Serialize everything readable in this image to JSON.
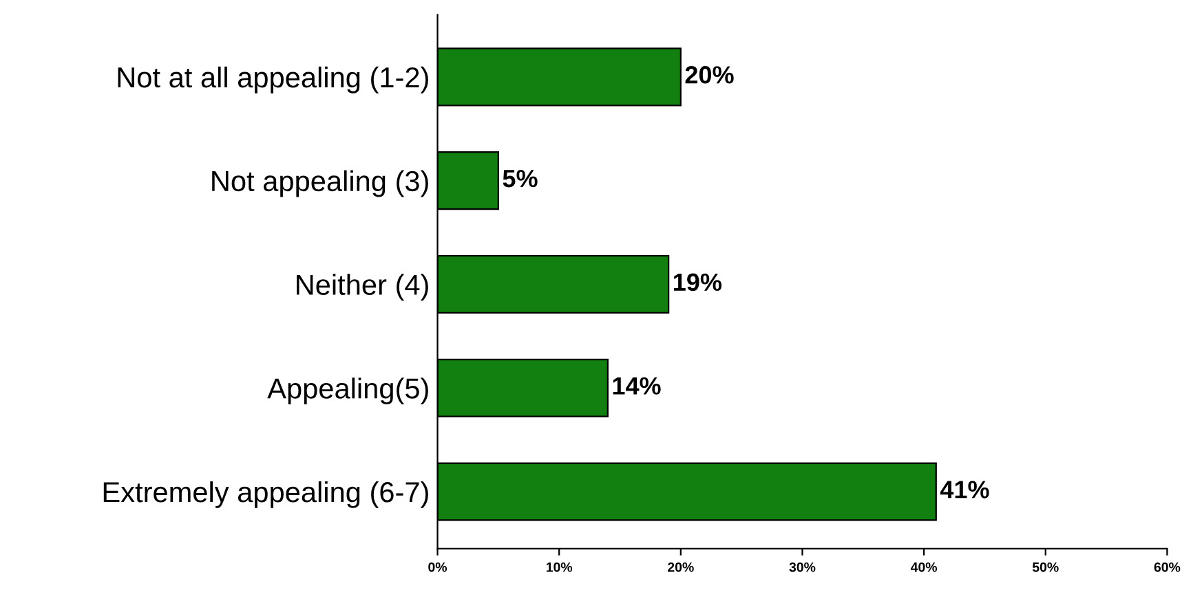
{
  "chart_data": {
    "type": "bar",
    "orientation": "horizontal",
    "categories": [
      "Not at all appealing (1-2)",
      "Not appealing (3)",
      "Neither (4)",
      "Appealing(5)",
      "Extremely appealing (6-7)"
    ],
    "values": [
      20,
      5,
      19,
      14,
      41
    ],
    "value_labels": [
      "20%",
      "5%",
      "19%",
      "14%",
      "41%"
    ],
    "color": "#118011",
    "xlim": [
      0,
      60
    ],
    "xticks": [
      {
        "value": 0,
        "label": "0%"
      },
      {
        "value": 10,
        "label": "10%"
      },
      {
        "value": 20,
        "label": "20%"
      },
      {
        "value": 30,
        "label": "30%"
      },
      {
        "value": 40,
        "label": "40%"
      },
      {
        "value": 50,
        "label": "50%"
      },
      {
        "value": 60,
        "label": "60%"
      }
    ],
    "grid": false,
    "legend": false
  }
}
